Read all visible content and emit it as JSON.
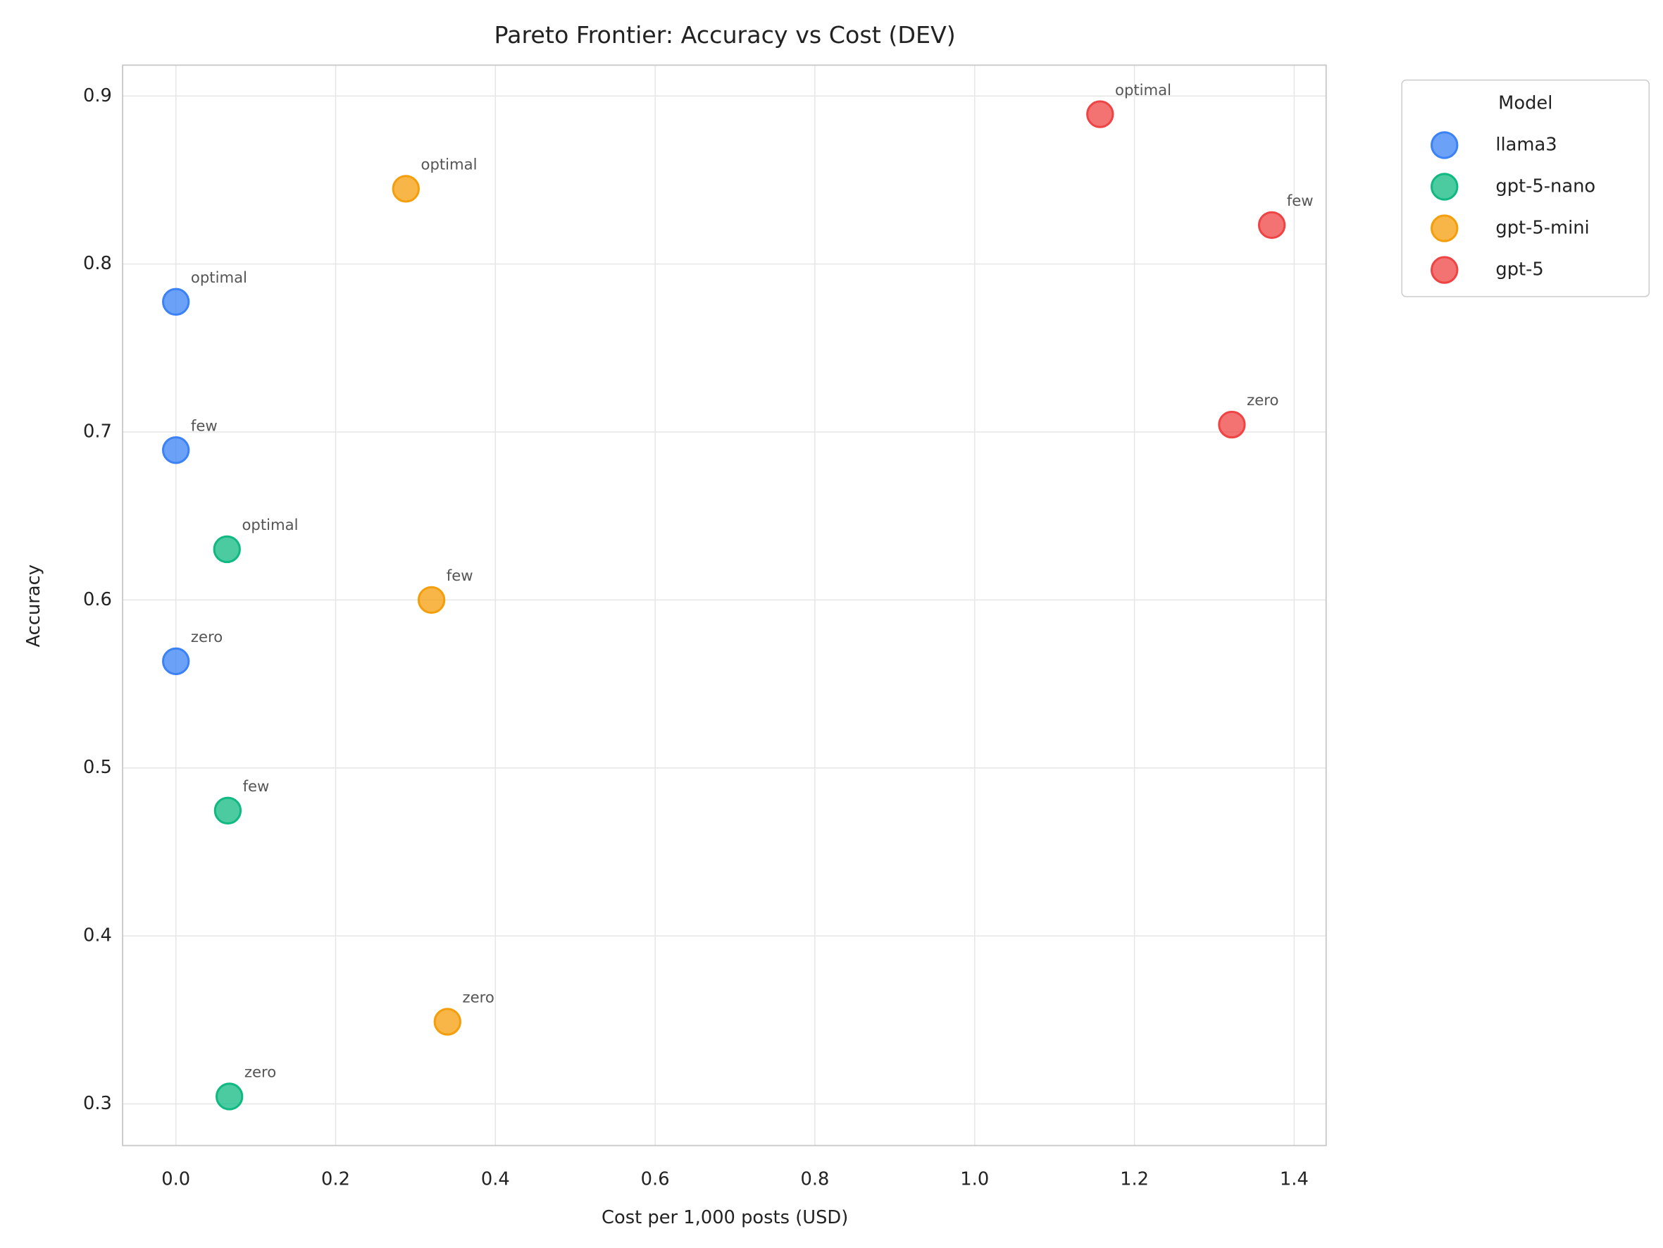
{
  "chart_data": {
    "type": "scatter",
    "title": "Pareto Frontier: Accuracy vs Cost (DEV)",
    "x_label": "Cost per 1,000 posts (USD)",
    "y_label": "Accuracy",
    "legend_title": "Model",
    "legend_position": "outside right",
    "grid": true,
    "xlim": [
      -0.0667,
      1.44
    ],
    "ylim": [
      0.2752,
      0.9184
    ],
    "xticks": [
      {
        "value": 0,
        "label": "0.0"
      },
      0.2,
      0.4,
      0.6,
      0.8,
      {
        "value": 1,
        "label": "1.0"
      },
      1.2,
      1.4
    ],
    "yticks": [
      0.3,
      0.4,
      0.5,
      0.6,
      0.7,
      0.8,
      0.9
    ],
    "series": [
      {
        "name": "llama3",
        "color": "#3b82f6",
        "x": [
          0,
          0,
          0
        ],
        "values": [
          0.5635,
          0.6892,
          0.7775
        ],
        "point_labels": [
          "zero",
          "few",
          "optimal"
        ]
      },
      {
        "name": "gpt-5-nano",
        "color": "#10b981",
        "x": [
          0.067,
          0.065,
          0.064
        ],
        "values": [
          0.3044,
          0.4746,
          0.6302
        ],
        "point_labels": [
          "zero",
          "few",
          "optimal"
        ]
      },
      {
        "name": "gpt-5-mini",
        "color": "#f59e0b",
        "x": [
          0.34,
          0.32,
          0.288
        ],
        "values": [
          0.3489,
          0.6,
          0.8448
        ],
        "point_labels": [
          "zero",
          "few",
          "optimal"
        ]
      },
      {
        "name": "gpt-5",
        "color": "#ef4444",
        "x": [
          1.322,
          1.372,
          1.157
        ],
        "values": [
          0.7044,
          0.8232,
          0.8892
        ],
        "point_labels": [
          "zero",
          "few",
          "optimal"
        ]
      }
    ]
  }
}
